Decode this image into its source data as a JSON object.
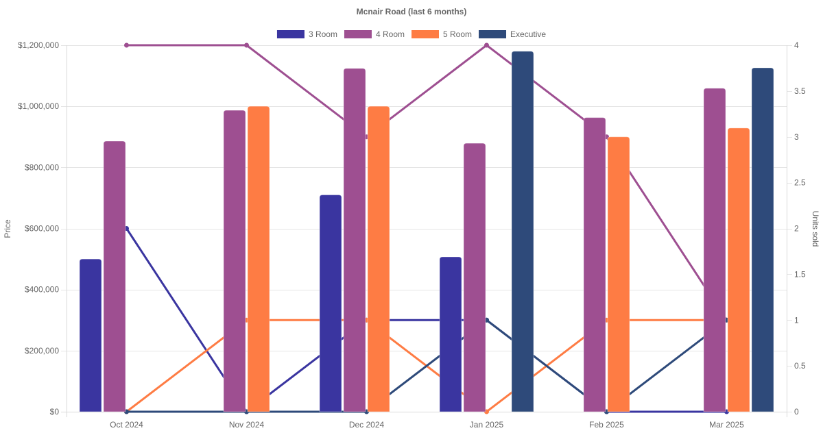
{
  "chart_data": {
    "type": "bar",
    "title": "Mcnair Road (last 6 months)",
    "categories": [
      "Oct 2024",
      "Nov 2024",
      "Dec 2024",
      "Jan 2025",
      "Feb 2025",
      "Mar 2025"
    ],
    "legend": {
      "position": "top",
      "entries": [
        "3 Room",
        "4 Room",
        "5 Room",
        "Executive"
      ]
    },
    "y_left": {
      "label": "Price",
      "range": [
        0,
        1200000
      ],
      "ticks": [
        0,
        200000,
        400000,
        600000,
        800000,
        1000000,
        1200000
      ],
      "tick_labels": [
        "$0",
        "$200,000",
        "$400,000",
        "$600,000",
        "$800,000",
        "$1,000,000",
        "$1,200,000"
      ]
    },
    "y_right": {
      "label": "Units sold",
      "range": [
        0,
        4
      ],
      "ticks": [
        0,
        0.5,
        1,
        1.5,
        2,
        2.5,
        3,
        3.5,
        4
      ],
      "tick_labels": [
        "0",
        "0.5",
        "1",
        "1.5",
        "2",
        "2.5",
        "3",
        "3.5",
        "4"
      ]
    },
    "grid": true,
    "bar_series": [
      {
        "name": "3 Room",
        "color": "#3a35a0",
        "axis": "left",
        "values": [
          500000,
          null,
          710000,
          507000,
          null,
          null
        ]
      },
      {
        "name": "4 Room",
        "color": "#9e4f91",
        "axis": "left",
        "values": [
          886000,
          987000,
          1124000,
          879000,
          963000,
          1059000
        ]
      },
      {
        "name": "5 Room",
        "color": "#fe7c44",
        "axis": "left",
        "values": [
          null,
          1000000,
          1000000,
          null,
          900000,
          929000
        ]
      },
      {
        "name": "Executive",
        "color": "#2e4a7a",
        "axis": "left",
        "values": [
          null,
          null,
          null,
          1180000,
          null,
          1126000
        ]
      }
    ],
    "line_series": [
      {
        "name": "3 Room units sold",
        "color": "#3a35a0",
        "axis": "right",
        "values": [
          2,
          0,
          1,
          1,
          0,
          0
        ]
      },
      {
        "name": "4 Room units sold",
        "color": "#9e4f91",
        "axis": "right",
        "values": [
          4,
          4,
          3,
          4,
          3,
          1
        ]
      },
      {
        "name": "5 Room units sold",
        "color": "#fe7c44",
        "axis": "right",
        "values": [
          0,
          1,
          1,
          0,
          1,
          1
        ]
      },
      {
        "name": "Executive units sold",
        "color": "#2e4a7a",
        "axis": "right",
        "values": [
          0,
          0,
          0,
          1,
          0,
          1
        ]
      }
    ]
  }
}
